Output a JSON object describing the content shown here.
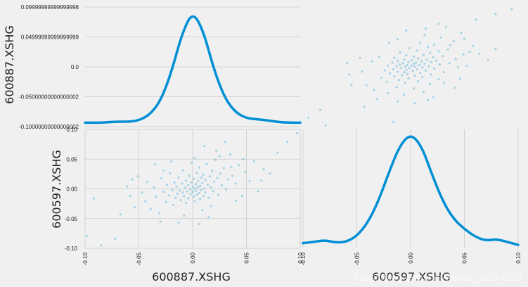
{
  "chart_data": {
    "type": "scatter",
    "layout": "scatter-matrix 2x2 with KDE on diagonal",
    "variables": [
      "600887.XSHG",
      "600597.XSHG"
    ],
    "colors": {
      "series": "#008fd5",
      "background": "#f0f0f0",
      "grid": "#cbcbcb"
    },
    "top_left_kde": {
      "variable": "600887.XSHG",
      "ylabel": "600887.XSHG",
      "yticks": [
        "0.09999999999999998",
        "0.04999999999999999",
        "0.0",
        "-0.05000000000000002",
        "-0.10000000000000002"
      ],
      "ylim": [
        -0.1,
        0.1
      ],
      "density_xlim": [
        -0.1,
        0.1
      ],
      "density_curve": [
        [
          -0.1,
          0.2
        ],
        [
          -0.09,
          0.2
        ],
        [
          -0.08,
          0.25
        ],
        [
          -0.07,
          0.4
        ],
        [
          -0.06,
          0.35
        ],
        [
          -0.05,
          0.6
        ],
        [
          -0.04,
          1.6
        ],
        [
          -0.03,
          4.0
        ],
        [
          -0.02,
          9.0
        ],
        [
          -0.01,
          16.0
        ],
        [
          0.0,
          20.0
        ],
        [
          0.01,
          16.5
        ],
        [
          0.02,
          9.5
        ],
        [
          0.03,
          4.5
        ],
        [
          0.04,
          2.0
        ],
        [
          0.05,
          1.0
        ],
        [
          0.06,
          0.8
        ],
        [
          0.07,
          0.6
        ],
        [
          0.08,
          0.3
        ],
        [
          0.09,
          0.2
        ],
        [
          0.1,
          0.2
        ]
      ]
    },
    "bottom_right_kde": {
      "variable": "600597.XSHG",
      "xlabel": "600597.XSHG",
      "xticks": [
        "-0.10",
        "-0.05",
        "0.00",
        "0.05",
        "0.10"
      ],
      "xlim": [
        -0.1,
        0.1
      ],
      "density_curve": [
        [
          -0.1,
          0.4
        ],
        [
          -0.09,
          0.6
        ],
        [
          -0.08,
          0.9
        ],
        [
          -0.07,
          0.5
        ],
        [
          -0.06,
          0.6
        ],
        [
          -0.05,
          1.6
        ],
        [
          -0.04,
          3.8
        ],
        [
          -0.03,
          7.5
        ],
        [
          -0.02,
          12.5
        ],
        [
          -0.01,
          17.0
        ],
        [
          0.0,
          19.0
        ],
        [
          0.01,
          17.0
        ],
        [
          0.02,
          12.0
        ],
        [
          0.03,
          7.5
        ],
        [
          0.04,
          4.5
        ],
        [
          0.05,
          2.8
        ],
        [
          0.06,
          1.5
        ],
        [
          0.07,
          0.8
        ],
        [
          0.08,
          1.1
        ],
        [
          0.09,
          0.6
        ],
        [
          0.1,
          0.1
        ]
      ]
    },
    "top_right_scatter": {
      "x_variable": "600597.XSHG",
      "y_variable": "600887.XSHG",
      "xlim": [
        -0.1,
        0.1
      ],
      "ylim": [
        -0.1,
        0.1
      ]
    },
    "bottom_left_scatter": {
      "x_variable": "600887.XSHG",
      "y_variable": "600597.XSHG",
      "xlabel": "600887.XSHG",
      "ylabel": "600597.XSHG",
      "xticks": [
        "-0.10",
        "-0.05",
        "0.00",
        "0.05",
        "0.10"
      ],
      "yticks": [
        "0.10",
        "0.05",
        "0.00",
        "-0.05",
        "-0.10"
      ],
      "xlim": [
        -0.1,
        0.1
      ],
      "ylim": [
        -0.1,
        0.1
      ]
    },
    "scatter_points": [
      [
        -0.098,
        -0.079
      ],
      [
        -0.092,
        -0.016
      ],
      [
        -0.085,
        -0.095
      ],
      [
        -0.072,
        -0.084
      ],
      [
        -0.061,
        0.004
      ],
      [
        -0.058,
        -0.012
      ],
      [
        -0.054,
        -0.031
      ],
      [
        -0.051,
        0.021
      ],
      [
        -0.047,
        -0.006
      ],
      [
        -0.044,
        -0.021
      ],
      [
        -0.042,
        0.012
      ],
      [
        -0.039,
        -0.034
      ],
      [
        -0.036,
        0.003
      ],
      [
        -0.034,
        -0.013
      ],
      [
        -0.031,
        -0.041
      ],
      [
        -0.029,
        0.018
      ],
      [
        -0.027,
        -0.005
      ],
      [
        -0.025,
        -0.022
      ],
      [
        -0.024,
        0.007
      ],
      [
        -0.022,
        -0.011
      ],
      [
        -0.021,
        0.026
      ],
      [
        -0.019,
        -0.002
      ],
      [
        -0.018,
        -0.027
      ],
      [
        -0.017,
        0.011
      ],
      [
        -0.016,
        -0.015
      ],
      [
        -0.015,
        0.004
      ],
      [
        -0.014,
        -0.008
      ],
      [
        -0.013,
        0.019
      ],
      [
        -0.012,
        -0.003
      ],
      [
        -0.011,
        -0.019
      ],
      [
        -0.01,
        0.009
      ],
      [
        -0.009,
        -0.006
      ],
      [
        -0.009,
        0.031
      ],
      [
        -0.008,
        -0.012
      ],
      [
        -0.007,
        0.002
      ],
      [
        -0.006,
        -0.024
      ],
      [
        -0.006,
        0.014
      ],
      [
        -0.005,
        -0.004
      ],
      [
        -0.004,
        0.006
      ],
      [
        -0.004,
        -0.016
      ],
      [
        -0.003,
        0.022
      ],
      [
        -0.002,
        -0.001
      ],
      [
        -0.002,
        -0.009
      ],
      [
        -0.001,
        0.011
      ],
      [
        0.0,
        -0.005
      ],
      [
        0.0,
        0.004
      ],
      [
        0.001,
        -0.013
      ],
      [
        0.001,
        0.017
      ],
      [
        0.002,
        0.001
      ],
      [
        0.002,
        -0.021
      ],
      [
        0.003,
        0.008
      ],
      [
        0.003,
        -0.003
      ],
      [
        0.004,
        0.027
      ],
      [
        0.004,
        -0.01
      ],
      [
        0.005,
        0.003
      ],
      [
        0.005,
        0.013
      ],
      [
        0.006,
        -0.007
      ],
      [
        0.006,
        0.036
      ],
      [
        0.007,
        0.005
      ],
      [
        0.007,
        -0.017
      ],
      [
        0.008,
        0.019
      ],
      [
        0.008,
        -0.002
      ],
      [
        0.009,
        0.01
      ],
      [
        0.01,
        -0.012
      ],
      [
        0.01,
        0.024
      ],
      [
        0.011,
        0.001
      ],
      [
        0.012,
        0.015
      ],
      [
        0.012,
        -0.006
      ],
      [
        0.013,
        0.042
      ],
      [
        0.014,
        0.007
      ],
      [
        0.015,
        -0.015
      ],
      [
        0.016,
        0.021
      ],
      [
        0.017,
        0.003
      ],
      [
        0.018,
        0.03
      ],
      [
        0.019,
        -0.004
      ],
      [
        0.02,
        0.012
      ],
      [
        0.021,
        0.049
      ],
      [
        0.023,
        0.018
      ],
      [
        0.024,
        -0.01
      ],
      [
        0.026,
        0.026
      ],
      [
        0.027,
        0.006
      ],
      [
        0.029,
        0.035
      ],
      [
        0.031,
        -0.001
      ],
      [
        0.033,
        0.016
      ],
      [
        0.035,
        0.058
      ],
      [
        0.037,
        0.022
      ],
      [
        0.04,
        0.009
      ],
      [
        0.043,
        0.04
      ],
      [
        0.046,
        -0.012
      ],
      [
        0.049,
        0.028
      ],
      [
        0.053,
        0.013
      ],
      [
        0.057,
        0.047
      ],
      [
        0.061,
        -0.004
      ],
      [
        0.066,
        0.033
      ],
      [
        0.072,
        0.026
      ],
      [
        0.079,
        0.061
      ],
      [
        0.088,
        0.079
      ],
      [
        0.097,
        0.094
      ],
      [
        -0.035,
        0.041
      ],
      [
        0.009,
        -0.036
      ],
      [
        -0.02,
        0.046
      ],
      [
        0.017,
        -0.029
      ],
      [
        -0.067,
        -0.043
      ],
      [
        0.03,
        0.079
      ],
      [
        0.04,
        -0.02
      ],
      [
        -0.013,
        -0.057
      ],
      [
        0.002,
        0.052
      ],
      [
        -0.027,
        0.031
      ],
      [
        0.022,
        0.064
      ],
      [
        -0.008,
        -0.045
      ],
      [
        0.011,
        0.072
      ],
      [
        0.006,
        -0.059
      ],
      [
        0.047,
        0.05
      ],
      [
        -0.056,
        0.016
      ],
      [
        0.064,
        0.014
      ],
      [
        -0.001,
        0.044
      ],
      [
        0.015,
        -0.047
      ],
      [
        0.025,
        0.055
      ],
      [
        -0.03,
        -0.055
      ],
      [
        0.036,
        0.037
      ]
    ]
  },
  "watermark": "https://blog.csdn.net/weixin_46274168"
}
